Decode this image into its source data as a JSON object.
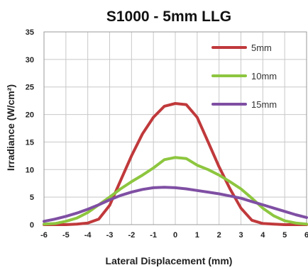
{
  "chart_data": {
    "type": "line",
    "title": "S1000 - 5mm LLG",
    "xlabel": "Lateral Displacement (mm)",
    "ylabel": "Irradiance (W/cm²)",
    "xlim": [
      -6,
      6
    ],
    "ylim": [
      0,
      35
    ],
    "xticks": [
      "-6",
      "-5",
      "-4",
      "-3",
      "-2",
      "-1",
      "0",
      "1",
      "2",
      "3",
      "4",
      "5",
      "6"
    ],
    "yticks": [
      "0",
      "5",
      "10",
      "15",
      "20",
      "25",
      "30",
      "35"
    ],
    "grid": true,
    "legend_position": "top-right",
    "x": [
      -6,
      -5.5,
      -5,
      -4.5,
      -4,
      -3.5,
      -3,
      -2.5,
      -2,
      -1.5,
      -1,
      -0.5,
      0,
      0.5,
      1,
      1.5,
      2,
      2.5,
      3,
      3.5,
      4,
      4.5,
      5,
      5.5,
      6
    ],
    "series": [
      {
        "name": "5mm",
        "color": "#c0393b",
        "values": [
          0,
          0,
          0,
          0.1,
          0.3,
          1.0,
          3.5,
          8.0,
          12.5,
          16.5,
          19.5,
          21.5,
          22.0,
          21.8,
          19.5,
          15.0,
          10.5,
          6.5,
          3.0,
          0.8,
          0.2,
          0.1,
          0,
          0,
          0
        ]
      },
      {
        "name": "10mm",
        "color": "#8dc63f",
        "values": [
          0.1,
          0.2,
          0.6,
          1.2,
          2.2,
          3.6,
          5.0,
          6.5,
          7.8,
          9.0,
          10.3,
          11.8,
          12.2,
          12.0,
          10.8,
          10.0,
          9.0,
          7.8,
          6.5,
          4.8,
          3.0,
          1.6,
          0.7,
          0.3,
          0.1
        ]
      },
      {
        "name": "15mm",
        "color": "#7f4fa3",
        "values": [
          0.6,
          1.0,
          1.5,
          2.1,
          2.8,
          3.6,
          4.5,
          5.3,
          5.9,
          6.4,
          6.7,
          6.8,
          6.7,
          6.5,
          6.2,
          5.9,
          5.6,
          5.2,
          4.8,
          4.2,
          3.6,
          3.0,
          2.4,
          1.8,
          1.3
        ]
      }
    ]
  }
}
